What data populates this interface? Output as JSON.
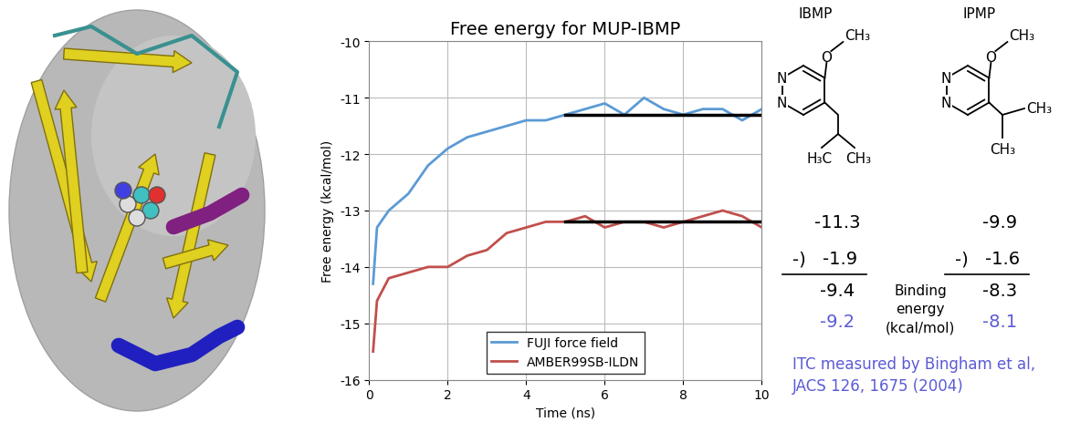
{
  "chart_data": {
    "type": "line",
    "title": "Free energy for MUP-IBMP",
    "x_label": "Time (ns)",
    "y_label": "Free energy (kcal/mol)",
    "xlim": [
      0,
      10
    ],
    "xticks": [
      0,
      2,
      4,
      6,
      8,
      10
    ],
    "ylim": [
      -16,
      -10
    ],
    "yticks": [
      -16,
      -15,
      -14,
      -13,
      -12,
      -11,
      -10
    ],
    "grid": true,
    "legend": "lower center",
    "x": [
      0.1,
      0.2,
      0.5,
      1,
      1.5,
      2,
      2.5,
      3,
      3.5,
      4,
      4.5,
      5,
      5.5,
      6,
      6.5,
      7,
      7.5,
      8,
      8.5,
      9,
      9.5,
      10
    ],
    "series": [
      {
        "name": "FUJI force field",
        "color": "#5b9bd5",
        "values": [
          -14.3,
          -13.3,
          -13.0,
          -12.7,
          -12.2,
          -11.9,
          -11.7,
          -11.6,
          -11.5,
          -11.4,
          -11.4,
          -11.3,
          -11.2,
          -11.1,
          -11.3,
          -11.0,
          -11.2,
          -11.3,
          -11.2,
          -11.2,
          -11.4,
          -11.2
        ]
      },
      {
        "name": "AMBER99SB-ILDN",
        "color": "#c0504d",
        "values": [
          -15.5,
          -14.6,
          -14.2,
          -14.1,
          -14.0,
          -14.0,
          -13.8,
          -13.7,
          -13.4,
          -13.3,
          -13.2,
          -13.2,
          -13.1,
          -13.3,
          -13.2,
          -13.2,
          -13.3,
          -13.2,
          -13.1,
          -13.0,
          -13.1,
          -13.3
        ]
      }
    ],
    "fit_lines": [
      {
        "x": [
          5,
          10
        ],
        "y": -11.3,
        "color": "#000000"
      },
      {
        "x": [
          5,
          10
        ],
        "y": -13.2,
        "color": "#000000"
      }
    ]
  },
  "molecules": [
    {
      "name": "IBMP",
      "ring_atoms": [
        "N",
        "N"
      ],
      "methoxy": [
        "O",
        "CH₃"
      ],
      "side_chain": [
        "H₃C",
        "CH₃"
      ],
      "free_energy": -11.3,
      "correction": -1.9,
      "binding_energy": -9.4,
      "itc": -9.2
    },
    {
      "name": "IPMP",
      "ring_atoms": [
        "N",
        "N"
      ],
      "methoxy": [
        "O",
        "CH₃"
      ],
      "side_chain": [
        "CH₃",
        "CH₃"
      ],
      "free_energy": -9.9,
      "correction": -1.6,
      "binding_energy": -8.3,
      "itc": -8.1
    }
  ],
  "subtract_label": "-)",
  "binding_label": [
    "Binding",
    "energy",
    "(kcal/mol)"
  ],
  "reference": [
    "ITC measured by Bingham et al,",
    "JACS 126, 1675 (2004)"
  ]
}
